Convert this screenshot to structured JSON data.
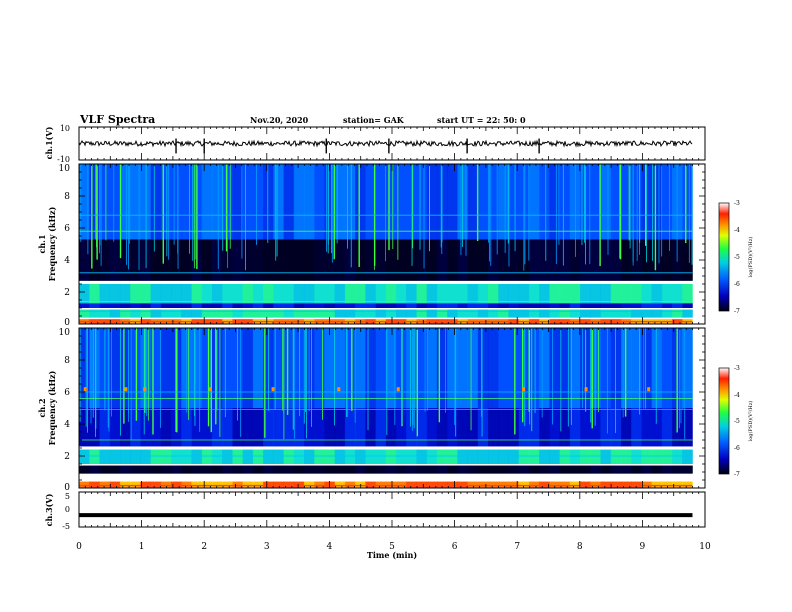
{
  "header": {
    "title": "VLF Spectra",
    "date": "Nov.20, 2020",
    "station": "station= GAK",
    "start_ut": "start  UT =   22: 50: 0"
  },
  "chart_data": [
    {
      "type": "line",
      "panel": "ch1-voltage",
      "ylabel": "ch.1(V)",
      "ylim": [
        -10,
        10
      ],
      "yticks": [
        "10",
        "-10"
      ],
      "baseline_v": 0,
      "noise_amplitude_v": 1.5,
      "x_range_min": [
        0,
        9.8
      ],
      "spikes_min": [
        1.55,
        2.0,
        3.95,
        4.95,
        6.2,
        7.35
      ]
    },
    {
      "type": "heatmap",
      "panel": "ch1-spectrogram",
      "ylabel": [
        "ch.1",
        "Frequency  (kHz)"
      ],
      "ylim": [
        0,
        10
      ],
      "yticks": [
        "0",
        "2",
        "4",
        "6",
        "8",
        "10"
      ],
      "colorbar": {
        "label": "log(PSD)(V²/Hz)",
        "range": [
          -7,
          -3
        ],
        "ticks": [
          "-3",
          "-4",
          "-5",
          "-6",
          "-7"
        ]
      },
      "bands_khz": [
        {
          "from": 0.0,
          "to": 0.3,
          "level": "high"
        },
        {
          "from": 0.4,
          "to": 0.9,
          "level": "medium"
        },
        {
          "from": 1.0,
          "to": 1.3,
          "level": "low"
        },
        {
          "from": 1.3,
          "to": 2.5,
          "level": "medium"
        },
        {
          "from": 2.7,
          "to": 5.3,
          "level": "very-low"
        },
        {
          "from": 5.3,
          "to": 10.0,
          "level": "medium-with-sferics"
        }
      ],
      "tones_khz": [
        0.8,
        1.4,
        3.2,
        5.8,
        6.8
      ]
    },
    {
      "type": "heatmap",
      "panel": "ch2-spectrogram",
      "ylabel": [
        "ch.2",
        "Frequency  (kHz)"
      ],
      "ylim": [
        0,
        10
      ],
      "yticks": [
        "0",
        "2",
        "4",
        "6",
        "8",
        "10"
      ],
      "colorbar": {
        "label": "log(PSD)(V²/Hz)",
        "range": [
          -7,
          -3
        ],
        "ticks": [
          "-3",
          "-4",
          "-5",
          "-6",
          "-7"
        ]
      },
      "bands_khz": [
        {
          "from": 0.0,
          "to": 0.4,
          "level": "high"
        },
        {
          "from": 0.9,
          "to": 1.4,
          "level": "very-low"
        },
        {
          "from": 1.5,
          "to": 2.4,
          "level": "medium"
        },
        {
          "from": 2.6,
          "to": 5.0,
          "level": "low"
        },
        {
          "from": 5.0,
          "to": 10.0,
          "level": "medium-with-sferics"
        }
      ],
      "tones_khz": [
        2.0,
        3.0,
        4.9,
        5.6,
        6.0
      ],
      "markers_min": [
        0.1,
        0.75,
        1.05,
        2.1,
        3.1,
        4.15,
        5.1,
        7.1,
        8.1,
        9.1
      ]
    },
    {
      "type": "line",
      "panel": "ch3-voltage",
      "ylabel": "ch.3(V)",
      "ylim": [
        -5,
        5
      ],
      "yticks": [
        "5",
        "0",
        "-5"
      ],
      "level_v": -1.6,
      "x_range_min": [
        0,
        9.8
      ]
    }
  ],
  "x_axis": {
    "label": "Time  (min)",
    "range": [
      0,
      10
    ],
    "ticks": [
      "0",
      "1",
      "2",
      "3",
      "4",
      "5",
      "6",
      "7",
      "8",
      "9",
      "10"
    ]
  },
  "colors": {
    "axis": "#000000",
    "colormap": [
      "#000020",
      "#0000ff",
      "#0090ff",
      "#00e0e0",
      "#20ff20",
      "#ffff00",
      "#ff8000",
      "#ff0000",
      "#ffffff"
    ]
  }
}
